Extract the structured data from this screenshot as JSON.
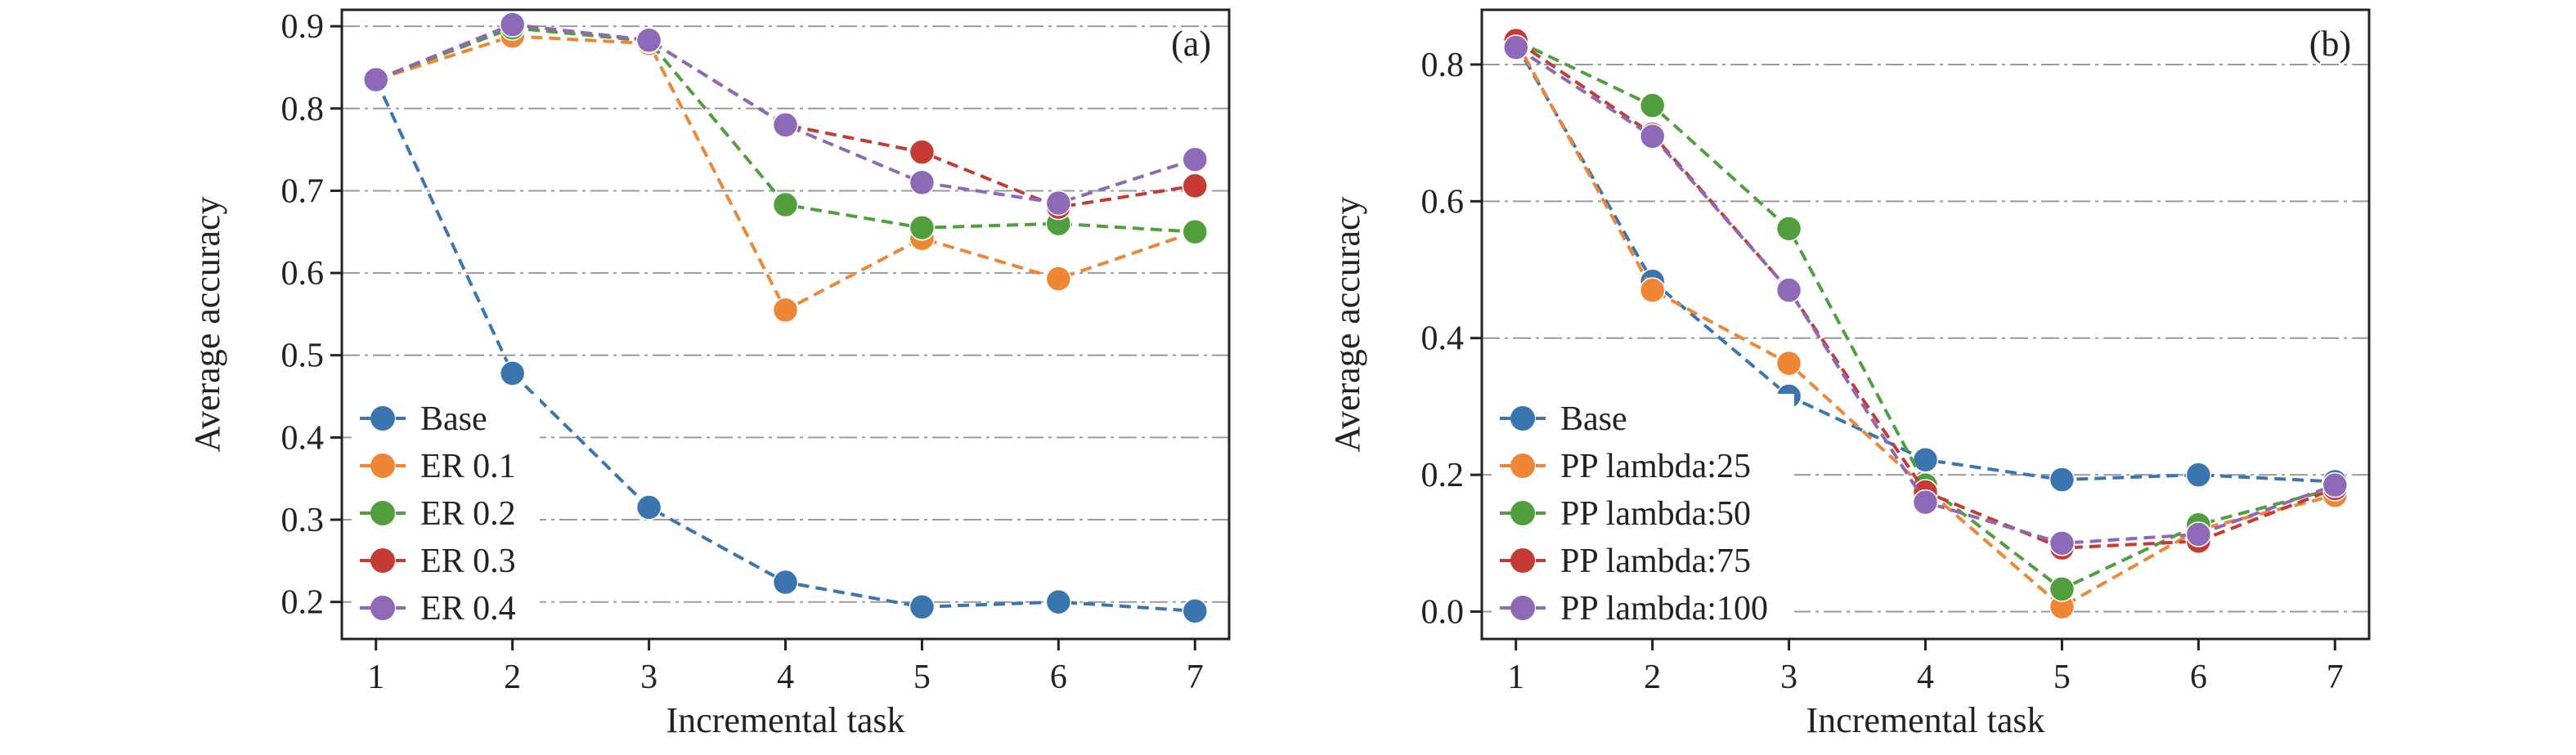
{
  "colors": {
    "c0": "#3b75af",
    "c1": "#ef8636",
    "c2": "#519e3e",
    "c3": "#c53a32",
    "c4": "#8d69b8"
  },
  "chart_data": [
    {
      "type": "line",
      "panel": "(a)",
      "xlabel": "Incremental task",
      "ylabel": "Average accuracy",
      "x": [
        1,
        2,
        3,
        4,
        5,
        6,
        7
      ],
      "xlim": [
        0.75,
        7.25
      ],
      "ylim": [
        0.155,
        0.92
      ],
      "yticks": [
        0.2,
        0.3,
        0.4,
        0.5,
        0.6,
        0.7,
        0.8,
        0.9
      ],
      "ytick_labels": [
        "0.2",
        "0.3",
        "0.4",
        "0.5",
        "0.6",
        "0.7",
        "0.8",
        "0.9"
      ],
      "grid": "horizontal dash-dot",
      "legend_position": "bottom-left",
      "series": [
        {
          "name": "Base",
          "color": "#3b75af",
          "values": [
            0.835,
            0.478,
            0.315,
            0.224,
            0.194,
            0.2,
            0.189
          ]
        },
        {
          "name": "ER 0.1",
          "color": "#ef8636",
          "values": [
            0.835,
            0.888,
            0.879,
            0.555,
            0.642,
            0.593,
            0.65
          ]
        },
        {
          "name": "ER 0.2",
          "color": "#519e3e",
          "values": [
            0.835,
            0.898,
            0.882,
            0.683,
            0.655,
            0.66,
            0.65
          ]
        },
        {
          "name": "ER 0.3",
          "color": "#c53a32",
          "values": [
            0.835,
            0.902,
            0.883,
            0.78,
            0.747,
            0.68,
            0.706
          ]
        },
        {
          "name": "ER 0.4",
          "color": "#8d69b8",
          "values": [
            0.835,
            0.902,
            0.883,
            0.78,
            0.71,
            0.685,
            0.738
          ]
        }
      ]
    },
    {
      "type": "line",
      "panel": "(b)",
      "xlabel": "Incremental task",
      "ylabel": "Average accuracy",
      "x": [
        1,
        2,
        3,
        4,
        5,
        6,
        7
      ],
      "xlim": [
        0.75,
        7.25
      ],
      "ylim": [
        -0.04,
        0.88
      ],
      "yticks": [
        0.0,
        0.2,
        0.4,
        0.6,
        0.8
      ],
      "ytick_labels": [
        "0.0",
        "0.2",
        "0.4",
        "0.6",
        "0.8"
      ],
      "grid": "horizontal dash-dot",
      "legend_position": "bottom-left",
      "series": [
        {
          "name": "Base",
          "color": "#3b75af",
          "values": [
            0.83,
            0.483,
            0.315,
            0.222,
            0.193,
            0.2,
            0.19
          ]
        },
        {
          "name": "PP lambda:25",
          "color": "#ef8636",
          "values": [
            0.835,
            0.47,
            0.363,
            0.18,
            0.007,
            0.12,
            0.17
          ]
        },
        {
          "name": "PP lambda:50",
          "color": "#519e3e",
          "values": [
            0.835,
            0.74,
            0.56,
            0.185,
            0.033,
            0.127,
            0.18
          ]
        },
        {
          "name": "PP lambda:75",
          "color": "#c53a32",
          "values": [
            0.835,
            0.698,
            0.47,
            0.175,
            0.093,
            0.103,
            0.18
          ]
        },
        {
          "name": "PP lambda:100",
          "color": "#8d69b8",
          "values": [
            0.825,
            0.695,
            0.47,
            0.16,
            0.1,
            0.113,
            0.185
          ]
        }
      ]
    }
  ]
}
